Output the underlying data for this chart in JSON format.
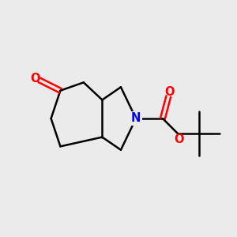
{
  "bg_color": "#ebebeb",
  "bond_color": "#000000",
  "N_color": "#0000ff",
  "O_color": "#ff0000",
  "line_width": 1.8,
  "font_size_atom": 10.5,
  "xlim": [
    0,
    10
  ],
  "ylim": [
    0,
    10
  ],
  "figsize": [
    3.0,
    3.0
  ],
  "dpi": 100
}
